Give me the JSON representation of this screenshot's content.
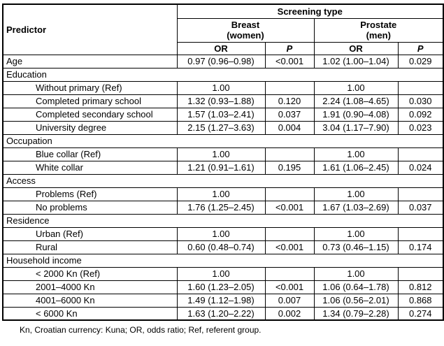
{
  "table": {
    "header": {
      "predictor": "Predictor",
      "screening_type": "Screening type",
      "breast_line1": "Breast",
      "breast_line2": "(women)",
      "prostate_line1": "Prostate",
      "prostate_line2": "(men)",
      "or_label": "OR",
      "p_label": "P"
    },
    "rows": [
      {
        "type": "data",
        "indent": false,
        "label": "Age",
        "b_or": "0.97 (0.96–0.98)",
        "b_p": "<0.001",
        "p_or": "1.02 (1.00–1.04)",
        "p_p": "0.029"
      },
      {
        "type": "section",
        "label": "Education"
      },
      {
        "type": "data",
        "indent": true,
        "label": "Without primary (Ref)",
        "b_or": "1.00",
        "b_p": "",
        "p_or": "1.00",
        "p_p": ""
      },
      {
        "type": "data",
        "indent": true,
        "label": "Completed primary school",
        "b_or": "1.32 (0.93–1.88)",
        "b_p": "0.120",
        "p_or": "2.24 (1.08–4.65)",
        "p_p": "0.030"
      },
      {
        "type": "data",
        "indent": true,
        "label": "Completed secondary school",
        "b_or": "1.57 (1.03–2.41)",
        "b_p": "0.037",
        "p_or": "1.91 (0.90–4.08)",
        "p_p": "0.092"
      },
      {
        "type": "data",
        "indent": true,
        "label": "University degree",
        "b_or": "2.15 (1.27–3.63)",
        "b_p": "0.004",
        "p_or": "3.04 (1.17–7.90)",
        "p_p": "0.023"
      },
      {
        "type": "section",
        "label": "Occupation"
      },
      {
        "type": "data",
        "indent": true,
        "label": "Blue collar (Ref)",
        "b_or": "1.00",
        "b_p": "",
        "p_or": "1.00",
        "p_p": ""
      },
      {
        "type": "data",
        "indent": true,
        "label": "White collar",
        "b_or": "1.21 (0.91–1.61)",
        "b_p": "0.195",
        "p_or": "1.61 (1.06–2.45)",
        "p_p": "0.024"
      },
      {
        "type": "section",
        "label": "Access"
      },
      {
        "type": "data",
        "indent": true,
        "label": "Problems (Ref)",
        "b_or": "1.00",
        "b_p": "",
        "p_or": "1.00",
        "p_p": ""
      },
      {
        "type": "data",
        "indent": true,
        "label": "No problems",
        "b_or": "1.76 (1.25–2.45)",
        "b_p": "<0.001",
        "p_or": "1.67 (1.03–2.69)",
        "p_p": "0.037"
      },
      {
        "type": "section",
        "label": "Residence"
      },
      {
        "type": "data",
        "indent": true,
        "label": "Urban (Ref)",
        "b_or": "1.00",
        "b_p": "",
        "p_or": "1.00",
        "p_p": ""
      },
      {
        "type": "data",
        "indent": true,
        "label": "Rural",
        "b_or": "0.60 (0.48–0.74)",
        "b_p": "<0.001",
        "p_or": "0.73 (0.46–1.15)",
        "p_p": "0.174"
      },
      {
        "type": "section",
        "label": "Household income"
      },
      {
        "type": "data",
        "indent": true,
        "label": "< 2000 Kn (Ref)",
        "b_or": "1.00",
        "b_p": "",
        "p_or": "1.00",
        "p_p": ""
      },
      {
        "type": "data",
        "indent": true,
        "label": "2001–4000 Kn",
        "b_or": "1.60 (1.23–2.05)",
        "b_p": "<0.001",
        "p_or": "1.06 (0.64–1.78)",
        "p_p": "0.812"
      },
      {
        "type": "data",
        "indent": true,
        "label": "4001–6000 Kn",
        "b_or": "1.49 (1.12–1.98)",
        "b_p": "0.007",
        "p_or": "1.06 (0.56–2.01)",
        "p_p": "0.868"
      },
      {
        "type": "data",
        "indent": true,
        "label": "< 6000 Kn",
        "b_or": "1.63 (1.20–2.22)",
        "b_p": "0.002",
        "p_or": "1.34 (0.79–2.28)",
        "p_p": "0.274"
      }
    ],
    "footnote": "Kn, Croatian currency: Kuna; OR, odds ratio; Ref, referent group."
  }
}
